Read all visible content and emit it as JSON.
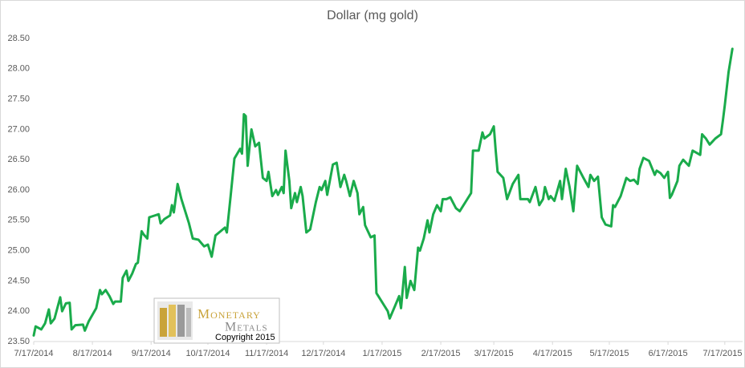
{
  "chart_data": {
    "type": "line",
    "title": "Dollar (mg gold)",
    "color": "#1aab4b",
    "x": [
      "7/17/2014",
      "7/18/2014",
      "7/21/2014",
      "7/23/2014",
      "7/25/2014",
      "7/26/2014",
      "7/28/2014",
      "7/31/2014",
      "8/1/2014",
      "8/3/2014",
      "8/5/2014",
      "8/6/2014",
      "8/8/2014",
      "8/12/2014",
      "8/13/2014",
      "8/15/2014",
      "8/19/2014",
      "8/21/2014",
      "8/22/2014",
      "8/24/2014",
      "8/26/2014",
      "8/28/2014",
      "8/29/2014",
      "9/1/2014",
      "9/2/2014",
      "9/4/2014",
      "9/5/2014",
      "9/7/2014",
      "9/9/2014",
      "9/10/2014",
      "9/12/2014",
      "9/13/2014",
      "9/15/2014",
      "9/16/2014",
      "9/19/2014",
      "9/21/2014",
      "9/22/2014",
      "9/24/2014",
      "9/27/2014",
      "9/28/2014",
      "9/29/2014",
      "10/1/2014",
      "10/3/2014",
      "10/7/2014",
      "10/9/2014",
      "10/12/2014",
      "10/15/2014",
      "10/17/2014",
      "10/19/2014",
      "10/21/2014",
      "10/26/2014",
      "10/27/2014",
      "10/29/2014",
      "10/31/2014",
      "11/3/2014",
      "11/4/2014",
      "11/5/2014",
      "11/6/2014",
      "11/7/2014",
      "11/8/2014",
      "11/9/2014",
      "11/11/2014",
      "11/13/2014",
      "11/15/2014",
      "11/17/2014",
      "11/18/2014",
      "11/20/2014",
      "11/22/2014",
      "11/23/2014",
      "11/25/2014",
      "11/26/2014",
      "11/27/2014",
      "11/29/2014",
      "11/30/2014",
      "12/2/2014",
      "12/3/2014",
      "12/5/2014",
      "12/6/2014",
      "12/8/2014",
      "12/10/2014",
      "12/13/2014",
      "12/15/2014",
      "12/16/2014",
      "12/18/2014",
      "12/19/2014",
      "12/22/2014",
      "12/24/2014",
      "12/26/2014",
      "12/28/2014",
      "12/29/2014",
      "12/31/2014",
      "1/2/2015",
      "1/4/2015",
      "1/5/2015",
      "1/7/2015",
      "1/8/2015",
      "1/11/2015",
      "1/13/2015",
      "1/14/2015",
      "1/16/2015",
      "1/18/2015",
      "1/20/2015",
      "1/21/2015",
      "1/24/2015",
      "1/26/2015",
      "1/27/2015",
      "1/29/2015",
      "1/30/2015",
      "2/1/2015",
      "2/3/2015",
      "2/5/2015",
      "2/6/2015",
      "2/8/2015",
      "2/10/2015",
      "2/11/2015",
      "2/13/2015",
      "2/15/2015",
      "2/17/2015",
      "2/18/2015",
      "2/20/2015",
      "2/22/2015",
      "2/25/2015",
      "2/27/2015",
      "3/2/2015",
      "3/5/2015",
      "3/6/2015",
      "3/9/2015",
      "3/11/2015",
      "3/12/2015",
      "3/15/2015",
      "3/17/2015",
      "3/18/2015",
      "3/19/2015",
      "3/22/2015",
      "3/24/2015",
      "3/27/2015",
      "3/30/2015",
      "3/31/2015",
      "4/4/2015",
      "4/5/2015",
      "4/8/2015",
      "4/10/2015",
      "4/12/2015",
      "4/13/2015",
      "4/15/2015",
      "4/16/2015",
      "4/18/2015",
      "4/21/2015",
      "4/22/2015",
      "4/24/2015",
      "4/26/2015",
      "4/28/2015",
      "4/30/2015",
      "5/3/2015",
      "5/6/2015",
      "5/7/2015",
      "5/9/2015",
      "5/11/2015",
      "5/13/2015",
      "5/15/2015",
      "5/18/2015",
      "5/19/2015",
      "5/20/2015",
      "5/23/2015",
      "5/26/2015",
      "5/28/2015",
      "5/30/2015",
      "6/1/2015",
      "6/2/2015",
      "6/4/2015",
      "6/7/2015",
      "6/10/2015",
      "6/11/2015",
      "6/13/2015",
      "6/15/2015",
      "6/17/2015",
      "6/18/2015",
      "6/19/2015",
      "6/22/2015",
      "6/23/2015",
      "6/25/2015",
      "6/28/2015",
      "6/30/2015",
      "7/4/2015",
      "7/5/2015",
      "7/7/2015",
      "7/9/2015",
      "7/12/2015",
      "7/15/2015",
      "7/16/2015",
      "7/17/2015",
      "7/19/2015",
      "7/21/2015"
    ],
    "values": [
      23.6,
      23.75,
      23.7,
      23.8,
      24.03,
      23.8,
      23.88,
      24.23,
      24.0,
      24.13,
      24.14,
      23.7,
      23.77,
      23.78,
      23.68,
      23.83,
      24.05,
      24.35,
      24.28,
      24.35,
      24.25,
      24.12,
      24.16,
      24.16,
      24.55,
      24.67,
      24.5,
      24.62,
      24.78,
      24.8,
      25.32,
      25.27,
      25.2,
      25.55,
      25.58,
      25.6,
      25.45,
      25.52,
      25.58,
      25.75,
      25.63,
      26.1,
      25.85,
      25.45,
      25.2,
      25.18,
      25.07,
      25.1,
      24.9,
      25.25,
      25.38,
      25.3,
      25.9,
      26.52,
      26.68,
      26.6,
      27.25,
      27.22,
      26.4,
      26.72,
      27.0,
      26.72,
      26.78,
      26.2,
      26.15,
      26.3,
      25.9,
      26.0,
      25.92,
      26.05,
      25.95,
      26.65,
      26.15,
      25.7,
      25.95,
      25.8,
      26.05,
      25.9,
      25.3,
      25.35,
      25.8,
      26.05,
      26.0,
      26.15,
      25.92,
      26.42,
      26.45,
      26.05,
      26.25,
      26.15,
      25.9,
      26.15,
      25.95,
      25.6,
      25.72,
      25.42,
      25.22,
      25.25,
      24.3,
      24.2,
      24.1,
      24.0,
      23.88,
      24.1,
      24.25,
      24.05,
      24.73,
      24.22,
      24.5,
      24.35,
      25.05,
      25.0,
      25.2,
      25.5,
      25.3,
      25.6,
      25.75,
      25.65,
      25.85,
      25.85,
      25.88,
      25.7,
      25.65,
      25.8,
      25.95,
      26.65,
      26.65,
      26.95,
      26.85,
      26.92,
      27.05,
      26.65,
      26.3,
      26.2,
      25.85,
      26.1,
      26.25,
      25.85,
      25.85,
      25.8,
      26.05,
      25.75,
      25.85,
      26.05,
      25.85,
      25.9,
      25.82,
      26.15,
      25.85,
      26.35,
      26.05,
      25.65,
      26.4,
      26.22,
      26.05,
      26.25,
      26.15,
      26.22,
      25.55,
      25.43,
      25.4,
      25.75,
      25.72,
      25.9,
      26.2,
      26.15,
      26.17,
      26.1,
      26.35,
      26.53,
      26.48,
      26.25,
      26.32,
      26.28,
      26.2,
      26.3,
      25.87,
      25.92,
      26.15,
      26.4,
      26.5,
      26.4,
      26.65,
      26.58,
      26.92,
      26.85,
      26.75,
      26.85,
      26.92,
      27.15,
      27.4,
      27.95,
      28.33
    ],
    "xlim": [
      "7/17/2014",
      "7/23/2015"
    ],
    "xticks": [
      "7/17/2014",
      "8/17/2014",
      "9/17/2014",
      "10/17/2014",
      "11/17/2014",
      "12/17/2014",
      "1/17/2015",
      "2/17/2015",
      "3/17/2015",
      "4/17/2015",
      "5/17/2015",
      "6/17/2015",
      "7/17/2015"
    ],
    "ylim": [
      23.5,
      28.5
    ],
    "yticks": [
      {
        "value": 23.5,
        "label": "23.50"
      },
      {
        "value": 24,
        "label": "24.00"
      },
      {
        "value": 24.5,
        "label": "24.50"
      },
      {
        "value": 25,
        "label": "25.00"
      },
      {
        "value": 25.5,
        "label": "25.50"
      },
      {
        "value": 26,
        "label": "26.00"
      },
      {
        "value": 26.5,
        "label": "26.50"
      },
      {
        "value": 27,
        "label": "27.00"
      },
      {
        "value": 27.5,
        "label": "27.50"
      },
      {
        "value": 28,
        "label": "28.00"
      },
      {
        "value": 28.5,
        "label": "28.50"
      }
    ],
    "grid": false,
    "annotations": [
      "Monetary",
      "Metals",
      "Copyright 2015"
    ]
  }
}
